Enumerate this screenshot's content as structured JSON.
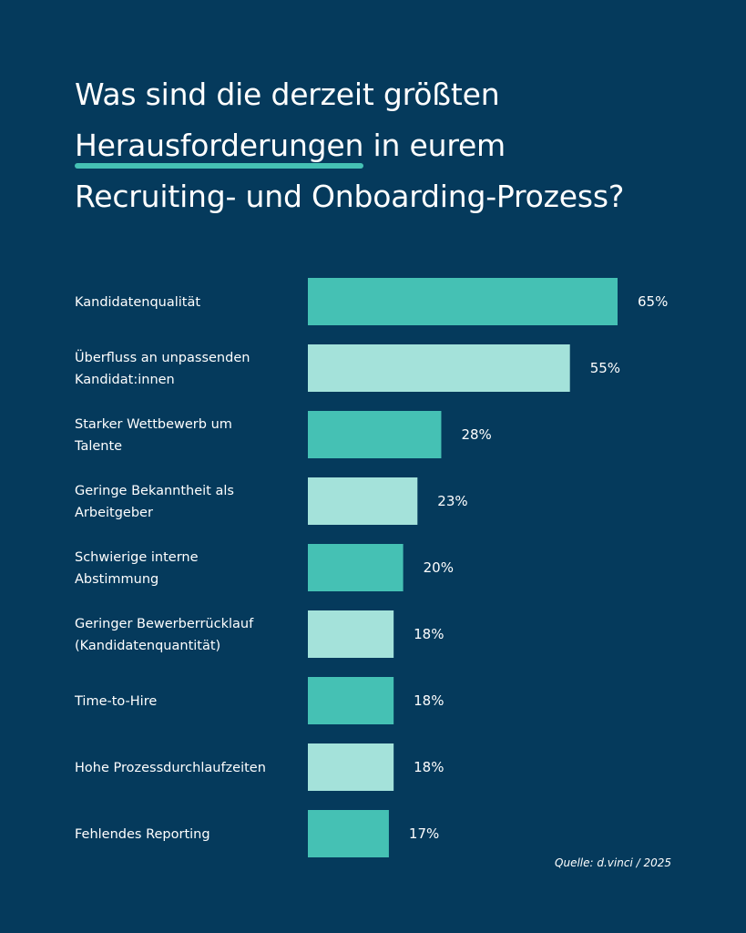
{
  "title": {
    "part1": "Was sind die derzeit größten",
    "highlight": "Herausforderungen",
    "part2": " in eurem",
    "part3": "Recruiting- und Onboarding-Prozess?"
  },
  "colors": {
    "background": "#053a5c",
    "bar_dark": "#45c1b4",
    "bar_light": "#a4e2da",
    "text": "#ffffff"
  },
  "chart_data": {
    "type": "bar",
    "orientation": "horizontal",
    "title": "Was sind die derzeit größten Herausforderungen in eurem Recruiting- und Onboarding-Prozess?",
    "unit": "%",
    "xlim": [
      0,
      65
    ],
    "categories": [
      [
        "Kandidatenqualität"
      ],
      [
        "Überfluss an unpassenden",
        "Kandidat:innen"
      ],
      [
        "Starker Wettbewerb um",
        "Talente"
      ],
      [
        "Geringe Bekanntheit als",
        "Arbeitgeber"
      ],
      [
        "Schwierige interne",
        "Abstimmung"
      ],
      [
        "Geringer Bewerberrücklauf",
        "(Kandidatenquantität)"
      ],
      [
        "Time-to-Hire"
      ],
      [
        "Hohe Prozessdurchlaufzeiten"
      ],
      [
        "Fehlendes Reporting"
      ]
    ],
    "values": [
      65,
      55,
      28,
      23,
      20,
      18,
      18,
      18,
      17
    ],
    "value_labels": [
      "65%",
      "55%",
      "28%",
      "23%",
      "20%",
      "18%",
      "18%",
      "18%",
      "17%"
    ],
    "source": "Quelle: d.vinci / 2025"
  }
}
